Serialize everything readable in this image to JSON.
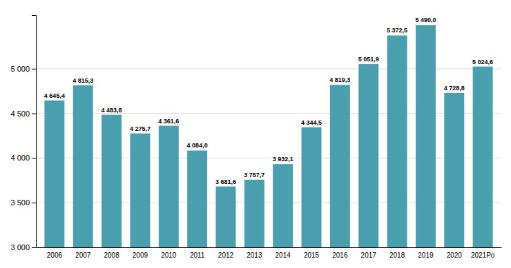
{
  "chart_data": {
    "type": "bar",
    "categories": [
      "2006",
      "2007",
      "2008",
      "2009",
      "2010",
      "2011",
      "2012",
      "2013",
      "2014",
      "2015",
      "2016",
      "2017",
      "2018",
      "2019",
      "2020",
      "2021Po"
    ],
    "values": [
      4645.4,
      4815.3,
      4483.8,
      4275.7,
      4361.6,
      4084.0,
      3681.6,
      3757.7,
      3932.1,
      4344.5,
      4819.3,
      5051.9,
      5372.5,
      5490.0,
      4728.8,
      5024.6
    ],
    "value_labels": [
      "4 645,4",
      "4 815,3",
      "4 483,8",
      "4 275,7",
      "4 361,6",
      "4 084,0",
      "3 681,6",
      "3 757,7",
      "3 932,1",
      "4 344,5",
      "4 819,3",
      "5 051,9",
      "5 372,5",
      "5 490,0",
      "4 728,8",
      "5 024,6"
    ],
    "color": "#4a9faf",
    "ylim": [
      3000,
      5600
    ],
    "yticks": [
      {
        "value": 3000,
        "label": "3 000"
      },
      {
        "value": 3500,
        "label": "3 500"
      },
      {
        "value": 4000,
        "label": "4 000"
      },
      {
        "value": 4500,
        "label": "4 500"
      },
      {
        "value": 5000,
        "label": "5 000"
      }
    ],
    "grid": true,
    "data_labels": true
  }
}
